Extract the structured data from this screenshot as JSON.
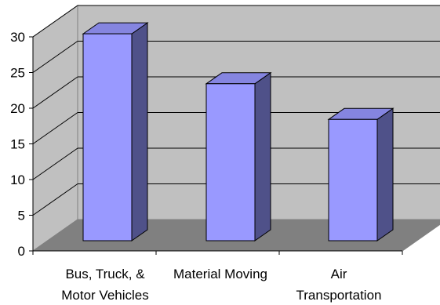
{
  "chart_data": {
    "type": "bar",
    "title": "",
    "xlabel": "",
    "ylabel": "",
    "categories": [
      [
        "Bus, Truck, &",
        "Motor Vehicles"
      ],
      [
        "Material Moving"
      ],
      [
        "Air",
        "Transportation"
      ]
    ],
    "values": [
      29,
      22,
      17
    ],
    "ylim": [
      0,
      30
    ],
    "yticks": [
      "0",
      "5",
      "10",
      "15",
      "20",
      "25",
      "30"
    ],
    "grid": true,
    "legend": "none",
    "colors": {
      "bar_front": "#9999ff",
      "bar_side": "#4f5189",
      "bar_top": "#8585e0",
      "wall": "#c0c0c0",
      "floor": "#808080",
      "gridline": "#000000"
    }
  }
}
